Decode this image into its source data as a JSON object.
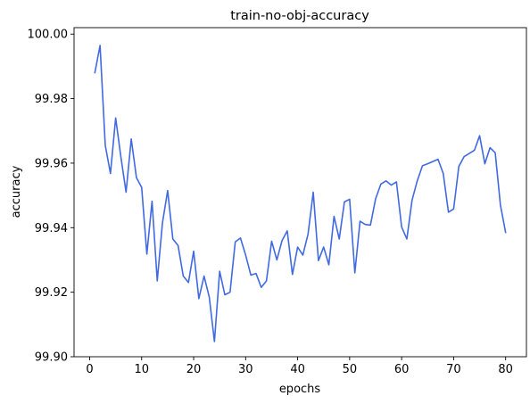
{
  "chart_data": {
    "type": "line",
    "title": "train-no-obj-accuracy",
    "xlabel": "epochs",
    "ylabel": "accuracy",
    "xlim": [
      -3,
      84
    ],
    "ylim": [
      99.9,
      100.002
    ],
    "xticks": [
      0,
      10,
      20,
      30,
      40,
      50,
      60,
      70,
      80
    ],
    "xtick_labels": [
      "0",
      "10",
      "20",
      "30",
      "40",
      "50",
      "60",
      "70",
      "80"
    ],
    "yticks": [
      99.9,
      99.92,
      99.94,
      99.96,
      99.98,
      100.0
    ],
    "ytick_labels": [
      "99.90",
      "99.92",
      "99.94",
      "99.96",
      "99.98",
      "100.00"
    ],
    "grid": false,
    "legend": "none",
    "series": [
      {
        "color": "#4169e1",
        "x": [
          1,
          2,
          3,
          4,
          5,
          6,
          7,
          8,
          9,
          10,
          11,
          12,
          13,
          14,
          15,
          16,
          17,
          18,
          19,
          20,
          21,
          22,
          23,
          24,
          25,
          26,
          27,
          28,
          29,
          30,
          31,
          32,
          33,
          34,
          35,
          36,
          37,
          38,
          39,
          40,
          41,
          42,
          43,
          44,
          45,
          46,
          47,
          48,
          49,
          50,
          51,
          52,
          53,
          54,
          55,
          56,
          57,
          58,
          59,
          60,
          61,
          62,
          63,
          64,
          65,
          66,
          67,
          68,
          69,
          70,
          71,
          72,
          73,
          74,
          75,
          76,
          77,
          78,
          79,
          80
        ],
        "y": [
          99.988,
          99.9965,
          99.9655,
          99.9568,
          99.974,
          99.962,
          99.951,
          99.9675,
          99.9555,
          99.9525,
          99.9318,
          99.9482,
          99.9235,
          99.9415,
          99.9515,
          99.9365,
          99.9345,
          99.925,
          99.923,
          99.9327,
          99.918,
          99.925,
          99.9185,
          99.9047,
          99.9265,
          99.9192,
          99.92,
          99.9356,
          99.9368,
          99.9315,
          99.9253,
          99.9258,
          99.9215,
          99.9235,
          99.9358,
          99.93,
          99.936,
          99.939,
          99.9255,
          99.934,
          99.9315,
          99.938,
          99.951,
          99.9298,
          99.934,
          99.9285,
          99.9435,
          99.9365,
          99.948,
          99.9488,
          99.926,
          99.942,
          99.941,
          99.9408,
          99.949,
          99.9535,
          99.9545,
          99.9532,
          99.9542,
          99.9402,
          99.9365,
          99.9485,
          99.9545,
          99.9592,
          99.9598,
          99.9605,
          99.9612,
          99.9568,
          99.9448,
          99.9458,
          99.959,
          99.962,
          99.963,
          99.964,
          99.9685,
          99.9598,
          99.9648,
          99.9632,
          99.947,
          99.9385
        ]
      }
    ]
  }
}
